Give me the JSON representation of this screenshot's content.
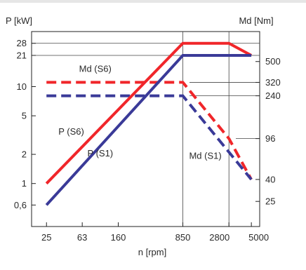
{
  "chart_data": {
    "type": "line",
    "x_scale": "log",
    "y_scale": "log",
    "xlabel": "n [rpm]",
    "ylabel_left": "P [kW]",
    "ylabel_right": "Md [Nm]",
    "x_ticks": [
      {
        "value": 25,
        "label": "25"
      },
      {
        "value": 63,
        "label": "63"
      },
      {
        "value": 160,
        "label": "160"
      },
      {
        "value": 850,
        "label": "850"
      },
      {
        "value": 2800,
        "label": "2800"
      },
      {
        "value": 5000,
        "label": "5000"
      }
    ],
    "y_left_ticks": [
      {
        "value": 0.6,
        "label": "0,6"
      },
      {
        "value": 1,
        "label": "1"
      },
      {
        "value": 2,
        "label": "2"
      },
      {
        "value": 5,
        "label": "5"
      },
      {
        "value": 10,
        "label": "10"
      },
      {
        "value": 21,
        "label": "21"
      },
      {
        "value": 28,
        "label": "28"
      }
    ],
    "y_right_ticks": [
      {
        "value": 25,
        "label": "25"
      },
      {
        "value": 40,
        "label": "40"
      },
      {
        "value": 96,
        "label": "96"
      },
      {
        "value": 240,
        "label": "240"
      },
      {
        "value": 320,
        "label": "320"
      },
      {
        "value": 500,
        "label": "500"
      }
    ],
    "xlim": [
      17,
      6200
    ],
    "ylim_left": [
      0.36,
      37
    ],
    "ylim_right": [
      14.6,
      950
    ],
    "series": [
      {
        "name": "P (S6)",
        "axis": "left",
        "color": "#f0262a",
        "dashed": false,
        "x": [
          25,
          850,
          2800,
          5000
        ],
        "y": [
          1,
          28,
          28,
          21
        ]
      },
      {
        "name": "P (S1)",
        "axis": "left",
        "color": "#3a3a98",
        "dashed": false,
        "x": [
          25,
          850,
          5000
        ],
        "y": [
          0.6,
          21,
          21
        ]
      },
      {
        "name": "Md (S6)",
        "axis": "right",
        "color": "#f0262a",
        "dashed": true,
        "x": [
          25,
          850,
          2800,
          5000
        ],
        "y": [
          320,
          320,
          96,
          40
        ]
      },
      {
        "name": "Md (S1)",
        "axis": "right",
        "color": "#3a3a98",
        "dashed": true,
        "x": [
          25,
          850,
          5000
        ],
        "y": [
          240,
          240,
          40
        ]
      }
    ],
    "grid": false
  }
}
